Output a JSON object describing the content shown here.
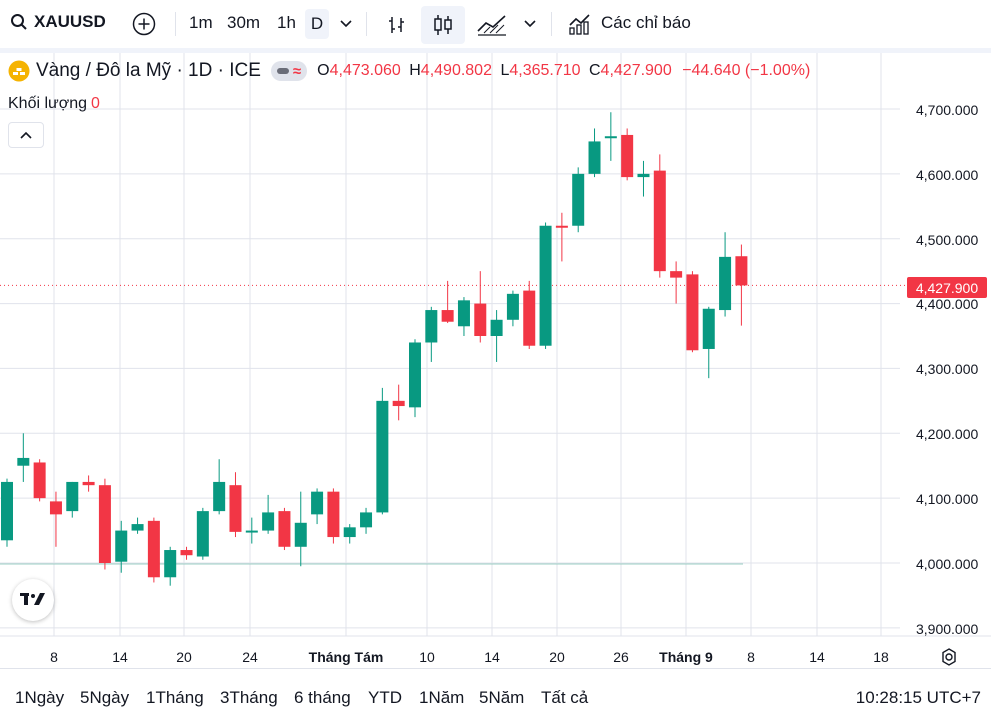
{
  "toolbar": {
    "symbol": "XAUUSD",
    "timeframes": [
      "1m",
      "30m",
      "1h",
      "D"
    ],
    "active_timeframe": "D",
    "indicators_label": "Các chỉ báo"
  },
  "legend": {
    "title": "Vàng / Đô la Mỹ · 1D · ICE",
    "o_label": "O",
    "o_value": "4,473.060",
    "h_label": "H",
    "h_value": "4,490.802",
    "l_label": "L",
    "l_value": "4,365.710",
    "c_label": "C",
    "c_value": "4,427.900",
    "change": "−44.640 (−1.00%)"
  },
  "volume": {
    "label": "Khối lượng",
    "value": "0"
  },
  "price_axis": {
    "labels": [
      "4,700.000",
      "4,600.000",
      "4,500.000",
      "4,400.000",
      "4,300.000",
      "4,200.000",
      "4,100.000",
      "4,000.000",
      "3,900.000"
    ],
    "last_price": "4,427.900"
  },
  "time_axis": {
    "labels": [
      "8",
      "14",
      "20",
      "24",
      "Tháng Tám",
      "10",
      "14",
      "20",
      "26",
      "Tháng 9",
      "8",
      "14",
      "18"
    ],
    "bold": [
      "Tháng Tám",
      "Tháng 9"
    ]
  },
  "ranges": [
    "1Ngày",
    "5Ngày",
    "1Tháng",
    "3Tháng",
    "6 tháng",
    "YTD",
    "1Năm",
    "5Năm",
    "Tất cả"
  ],
  "clock": "10:28:15 UTC+7",
  "colors": {
    "up": "#089981",
    "down": "#f23645",
    "grid": "#e0e3eb"
  },
  "chart_data": {
    "type": "candlestick",
    "title": "Vàng / Đô la Mỹ · 1D · ICE",
    "ylim": [
      3880,
      4720
    ],
    "candles": [
      {
        "o": 4035,
        "h": 4130,
        "l": 4025,
        "c": 4125
      },
      {
        "o": 4150,
        "h": 4200,
        "l": 4125,
        "c": 4162
      },
      {
        "o": 4155,
        "h": 4160,
        "l": 4095,
        "c": 4100
      },
      {
        "o": 4095,
        "h": 4110,
        "l": 4025,
        "c": 4075
      },
      {
        "o": 4080,
        "h": 4125,
        "l": 4070,
        "c": 4125
      },
      {
        "o": 4125,
        "h": 4135,
        "l": 4110,
        "c": 4120
      },
      {
        "o": 4120,
        "h": 4130,
        "l": 3990,
        "c": 4000
      },
      {
        "o": 4002,
        "h": 4065,
        "l": 3985,
        "c": 4050
      },
      {
        "o": 4050,
        "h": 4070,
        "l": 4045,
        "c": 4060
      },
      {
        "o": 4065,
        "h": 4070,
        "l": 3970,
        "c": 3978
      },
      {
        "o": 3978,
        "h": 4025,
        "l": 3965,
        "c": 4020
      },
      {
        "o": 4020,
        "h": 4025,
        "l": 4005,
        "c": 4012
      },
      {
        "o": 4010,
        "h": 4085,
        "l": 4005,
        "c": 4080
      },
      {
        "o": 4080,
        "h": 4160,
        "l": 4075,
        "c": 4125
      },
      {
        "o": 4120,
        "h": 4140,
        "l": 4040,
        "c": 4048
      },
      {
        "o": 4048,
        "h": 4070,
        "l": 4030,
        "c": 4050
      },
      {
        "o": 4050,
        "h": 4105,
        "l": 4045,
        "c": 4078
      },
      {
        "o": 4080,
        "h": 4085,
        "l": 4020,
        "c": 4025
      },
      {
        "o": 4025,
        "h": 4110,
        "l": 3995,
        "c": 4062
      },
      {
        "o": 4075,
        "h": 4115,
        "l": 4060,
        "c": 4110
      },
      {
        "o": 4110,
        "h": 4115,
        "l": 4030,
        "c": 4040
      },
      {
        "o": 4040,
        "h": 4060,
        "l": 4030,
        "c": 4055
      },
      {
        "o": 4055,
        "h": 4085,
        "l": 4045,
        "c": 4078
      },
      {
        "o": 4078,
        "h": 4270,
        "l": 4075,
        "c": 4250
      },
      {
        "o": 4250,
        "h": 4275,
        "l": 4220,
        "c": 4242
      },
      {
        "o": 4240,
        "h": 4345,
        "l": 4225,
        "c": 4340
      },
      {
        "o": 4340,
        "h": 4395,
        "l": 4310,
        "c": 4390
      },
      {
        "o": 4390,
        "h": 4435,
        "l": 4370,
        "c": 4372
      },
      {
        "o": 4365,
        "h": 4410,
        "l": 4350,
        "c": 4405
      },
      {
        "o": 4400,
        "h": 4450,
        "l": 4340,
        "c": 4350
      },
      {
        "o": 4350,
        "h": 4390,
        "l": 4310,
        "c": 4375
      },
      {
        "o": 4375,
        "h": 4420,
        "l": 4365,
        "c": 4415
      },
      {
        "o": 4420,
        "h": 4435,
        "l": 4330,
        "c": 4335
      },
      {
        "o": 4335,
        "h": 4525,
        "l": 4330,
        "c": 4520
      },
      {
        "o": 4520,
        "h": 4540,
        "l": 4465,
        "c": 4518
      },
      {
        "o": 4520,
        "h": 4610,
        "l": 4510,
        "c": 4600
      },
      {
        "o": 4600,
        "h": 4670,
        "l": 4595,
        "c": 4650
      },
      {
        "o": 4655,
        "h": 4695,
        "l": 4620,
        "c": 4658
      },
      {
        "o": 4660,
        "h": 4670,
        "l": 4590,
        "c": 4595
      },
      {
        "o": 4595,
        "h": 4620,
        "l": 4565,
        "c": 4600
      },
      {
        "o": 4605,
        "h": 4630,
        "l": 4440,
        "c": 4450
      },
      {
        "o": 4450,
        "h": 4465,
        "l": 4400,
        "c": 4440
      },
      {
        "o": 4445,
        "h": 4450,
        "l": 4325,
        "c": 4328
      },
      {
        "o": 4330,
        "h": 4395,
        "l": 4285,
        "c": 4392
      },
      {
        "o": 4390,
        "h": 4510,
        "l": 4380,
        "c": 4472
      },
      {
        "o": 4473,
        "h": 4491,
        "l": 4366,
        "c": 4428
      }
    ]
  }
}
